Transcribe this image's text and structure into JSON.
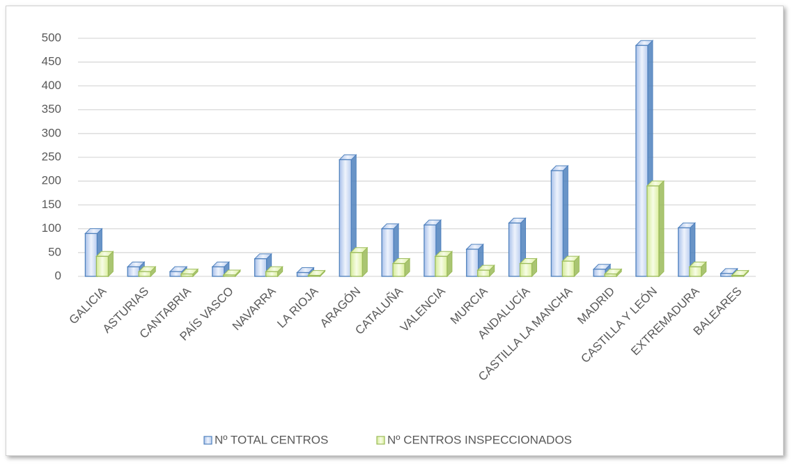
{
  "chart_data": {
    "type": "bar3d",
    "categories": [
      "GALICIA",
      "ASTURIAS",
      "CANTABRIA",
      "PAÍS VASCO",
      "NAVARRA",
      "LA RIOJA",
      "ARAGÓN",
      "CATALUÑA",
      "VALENCIA",
      "MURCIA",
      "ANDALUCÍA",
      "CASTILLA LA MANCHA",
      "MADRID",
      "CASTILLA Y LEÓN",
      "EXTREMADURA",
      "BALEARES"
    ],
    "series": [
      {
        "name": "Nº TOTAL CENTROS",
        "color": "#4f81bd",
        "values": [
          90,
          20,
          10,
          20,
          37,
          8,
          245,
          100,
          108,
          57,
          112,
          222,
          15,
          485,
          102,
          6
        ]
      },
      {
        "name": "Nº CENTROS INSPECCIONADOS",
        "color": "#9bbb59",
        "values": [
          42,
          10,
          5,
          3,
          10,
          2,
          50,
          27,
          42,
          13,
          27,
          32,
          5,
          190,
          20,
          2
        ]
      }
    ],
    "ylim": [
      0,
      500
    ],
    "yticks": [
      0,
      50,
      100,
      150,
      200,
      250,
      300,
      350,
      400,
      450,
      500
    ],
    "grid": true,
    "legend": "bottom"
  }
}
